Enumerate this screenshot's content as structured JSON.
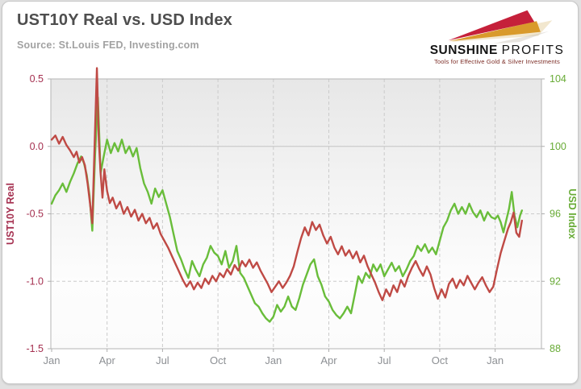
{
  "header": {
    "title": "UST10Y Real vs. USD Index",
    "source": "Source: St.Louis FED, Investing.com"
  },
  "logo": {
    "brand_primary": "SUNSHINE",
    "brand_secondary": "PROFITS",
    "tagline": "Tools for Effective Gold & Silver Investments"
  },
  "chart_data": {
    "type": "line",
    "title": "UST10Y Real vs. USD Index",
    "x_axis": {
      "unit": "months since Jan 2020",
      "range": [
        0,
        26.5
      ],
      "tick_positions": [
        0,
        3,
        6,
        9,
        12,
        15,
        18,
        21,
        24
      ],
      "tick_labels": [
        "Jan",
        "Apr",
        "Jul",
        "Oct",
        "Jan",
        "Apr",
        "Jul",
        "Oct",
        "Jan"
      ],
      "tick_color": "#8d9094"
    },
    "y_left": {
      "label": "UST10Y Real",
      "range": [
        -1.5,
        0.5
      ],
      "ticks": [
        0.5,
        0.0,
        -0.5,
        -1.0,
        -1.5
      ],
      "tick_labels": [
        "0.5",
        "0.0",
        "-0.5",
        "-1.0",
        "-1.5"
      ],
      "color": "#a53050"
    },
    "y_right": {
      "label": "USD Index",
      "range": [
        88,
        104
      ],
      "ticks": [
        104,
        100,
        96,
        92,
        88
      ],
      "tick_labels": [
        "104",
        "100",
        "96",
        "92",
        "88"
      ],
      "color": "#68ab36"
    },
    "grid": {
      "h_solid": [
        0.0
      ],
      "h_dashed": [
        -0.5,
        -1.0
      ],
      "v_dashed_positions": [
        3,
        6,
        9,
        12,
        15,
        18,
        21,
        24
      ],
      "border_color": "#b5b5b5",
      "solid_color": "#c3c3c3",
      "dashed_color": "#cbcbcb"
    },
    "legend": "none",
    "series": [
      {
        "name": "USD Index",
        "axis": "right",
        "color": "#69bd3a",
        "points": [
          [
            0.0,
            96.6
          ],
          [
            0.2,
            97.1
          ],
          [
            0.4,
            97.4
          ],
          [
            0.6,
            97.8
          ],
          [
            0.8,
            97.3
          ],
          [
            1.0,
            97.9
          ],
          [
            1.2,
            98.4
          ],
          [
            1.4,
            99.0
          ],
          [
            1.6,
            99.4
          ],
          [
            1.75,
            99.0
          ],
          [
            1.9,
            98.3
          ],
          [
            2.05,
            97.1
          ],
          [
            2.2,
            95.0
          ],
          [
            2.35,
            99.5
          ],
          [
            2.5,
            102.9
          ],
          [
            2.65,
            98.4
          ],
          [
            2.8,
            99.3
          ],
          [
            3.0,
            100.4
          ],
          [
            3.2,
            99.6
          ],
          [
            3.4,
            100.2
          ],
          [
            3.6,
            99.7
          ],
          [
            3.8,
            100.4
          ],
          [
            4.0,
            99.6
          ],
          [
            4.2,
            100.0
          ],
          [
            4.4,
            99.4
          ],
          [
            4.6,
            99.9
          ],
          [
            4.8,
            98.7
          ],
          [
            5.0,
            97.8
          ],
          [
            5.2,
            97.3
          ],
          [
            5.4,
            96.6
          ],
          [
            5.6,
            97.5
          ],
          [
            5.8,
            97.0
          ],
          [
            6.0,
            97.4
          ],
          [
            6.2,
            96.6
          ],
          [
            6.4,
            95.8
          ],
          [
            6.6,
            94.8
          ],
          [
            6.8,
            93.8
          ],
          [
            7.0,
            93.3
          ],
          [
            7.2,
            92.7
          ],
          [
            7.4,
            92.2
          ],
          [
            7.6,
            93.2
          ],
          [
            7.8,
            92.7
          ],
          [
            8.0,
            92.3
          ],
          [
            8.2,
            93.0
          ],
          [
            8.4,
            93.4
          ],
          [
            8.6,
            94.1
          ],
          [
            8.8,
            93.7
          ],
          [
            9.0,
            93.5
          ],
          [
            9.2,
            93.0
          ],
          [
            9.4,
            93.8
          ],
          [
            9.6,
            92.8
          ],
          [
            9.8,
            93.2
          ],
          [
            10.0,
            94.1
          ],
          [
            10.2,
            92.5
          ],
          [
            10.4,
            92.2
          ],
          [
            10.6,
            91.7
          ],
          [
            10.8,
            91.2
          ],
          [
            11.0,
            90.7
          ],
          [
            11.2,
            90.5
          ],
          [
            11.4,
            90.1
          ],
          [
            11.6,
            89.8
          ],
          [
            11.8,
            89.6
          ],
          [
            12.0,
            89.9
          ],
          [
            12.2,
            90.6
          ],
          [
            12.4,
            90.2
          ],
          [
            12.6,
            90.5
          ],
          [
            12.8,
            91.1
          ],
          [
            13.0,
            90.5
          ],
          [
            13.2,
            90.3
          ],
          [
            13.4,
            91.0
          ],
          [
            13.6,
            91.8
          ],
          [
            13.8,
            92.4
          ],
          [
            14.0,
            93.0
          ],
          [
            14.2,
            93.3
          ],
          [
            14.4,
            92.3
          ],
          [
            14.6,
            91.8
          ],
          [
            14.8,
            91.1
          ],
          [
            15.0,
            90.8
          ],
          [
            15.2,
            90.3
          ],
          [
            15.4,
            90.0
          ],
          [
            15.6,
            89.8
          ],
          [
            15.8,
            90.1
          ],
          [
            16.0,
            90.5
          ],
          [
            16.2,
            90.1
          ],
          [
            16.4,
            91.2
          ],
          [
            16.6,
            92.3
          ],
          [
            16.8,
            91.9
          ],
          [
            17.0,
            92.5
          ],
          [
            17.2,
            92.2
          ],
          [
            17.4,
            93.0
          ],
          [
            17.6,
            92.6
          ],
          [
            17.8,
            93.0
          ],
          [
            18.0,
            92.3
          ],
          [
            18.2,
            92.7
          ],
          [
            18.4,
            93.1
          ],
          [
            18.6,
            92.6
          ],
          [
            18.8,
            92.9
          ],
          [
            19.0,
            92.3
          ],
          [
            19.2,
            92.7
          ],
          [
            19.4,
            93.2
          ],
          [
            19.6,
            93.5
          ],
          [
            19.8,
            94.1
          ],
          [
            20.0,
            93.8
          ],
          [
            20.2,
            94.2
          ],
          [
            20.4,
            93.7
          ],
          [
            20.6,
            94.0
          ],
          [
            20.8,
            93.6
          ],
          [
            21.0,
            94.4
          ],
          [
            21.2,
            95.2
          ],
          [
            21.4,
            95.6
          ],
          [
            21.6,
            96.2
          ],
          [
            21.8,
            96.6
          ],
          [
            22.0,
            96.0
          ],
          [
            22.2,
            96.4
          ],
          [
            22.4,
            96.0
          ],
          [
            22.6,
            96.6
          ],
          [
            22.8,
            96.1
          ],
          [
            23.0,
            95.8
          ],
          [
            23.2,
            96.2
          ],
          [
            23.4,
            95.6
          ],
          [
            23.6,
            96.1
          ],
          [
            23.8,
            95.8
          ],
          [
            24.0,
            95.7
          ],
          [
            24.15,
            95.9
          ],
          [
            24.3,
            95.5
          ],
          [
            24.45,
            94.9
          ],
          [
            24.6,
            95.6
          ],
          [
            24.75,
            96.3
          ],
          [
            24.9,
            97.3
          ],
          [
            25.05,
            95.9
          ],
          [
            25.2,
            95.2
          ],
          [
            25.35,
            95.9
          ],
          [
            25.45,
            96.2
          ]
        ]
      },
      {
        "name": "UST10Y Real",
        "axis": "left",
        "color": "#bf4a45",
        "points": [
          [
            0.0,
            0.05
          ],
          [
            0.2,
            0.08
          ],
          [
            0.4,
            0.02
          ],
          [
            0.6,
            0.07
          ],
          [
            0.8,
            0.01
          ],
          [
            1.0,
            -0.03
          ],
          [
            1.2,
            -0.08
          ],
          [
            1.35,
            -0.04
          ],
          [
            1.5,
            -0.12
          ],
          [
            1.65,
            -0.08
          ],
          [
            1.8,
            -0.14
          ],
          [
            1.95,
            -0.28
          ],
          [
            2.1,
            -0.45
          ],
          [
            2.2,
            -0.57
          ],
          [
            2.3,
            -0.1
          ],
          [
            2.45,
            0.58
          ],
          [
            2.55,
            0.05
          ],
          [
            2.65,
            -0.2
          ],
          [
            2.75,
            -0.38
          ],
          [
            2.85,
            -0.17
          ],
          [
            3.0,
            -0.33
          ],
          [
            3.15,
            -0.42
          ],
          [
            3.3,
            -0.38
          ],
          [
            3.5,
            -0.46
          ],
          [
            3.7,
            -0.41
          ],
          [
            3.9,
            -0.5
          ],
          [
            4.1,
            -0.45
          ],
          [
            4.3,
            -0.52
          ],
          [
            4.5,
            -0.47
          ],
          [
            4.7,
            -0.55
          ],
          [
            4.9,
            -0.5
          ],
          [
            5.1,
            -0.57
          ],
          [
            5.3,
            -0.53
          ],
          [
            5.5,
            -0.61
          ],
          [
            5.7,
            -0.57
          ],
          [
            5.9,
            -0.65
          ],
          [
            6.1,
            -0.7
          ],
          [
            6.3,
            -0.75
          ],
          [
            6.5,
            -0.81
          ],
          [
            6.7,
            -0.87
          ],
          [
            6.9,
            -0.93
          ],
          [
            7.1,
            -0.99
          ],
          [
            7.3,
            -1.04
          ],
          [
            7.5,
            -1.0
          ],
          [
            7.7,
            -1.06
          ],
          [
            7.9,
            -1.01
          ],
          [
            8.1,
            -1.05
          ],
          [
            8.3,
            -0.98
          ],
          [
            8.5,
            -1.02
          ],
          [
            8.7,
            -0.96
          ],
          [
            8.9,
            -1.0
          ],
          [
            9.1,
            -0.94
          ],
          [
            9.3,
            -0.97
          ],
          [
            9.5,
            -0.91
          ],
          [
            9.7,
            -0.95
          ],
          [
            9.9,
            -0.88
          ],
          [
            10.1,
            -0.92
          ],
          [
            10.3,
            -0.85
          ],
          [
            10.5,
            -0.89
          ],
          [
            10.7,
            -0.84
          ],
          [
            10.9,
            -0.9
          ],
          [
            11.1,
            -0.86
          ],
          [
            11.3,
            -0.92
          ],
          [
            11.5,
            -0.97
          ],
          [
            11.7,
            -1.02
          ],
          [
            11.9,
            -1.08
          ],
          [
            12.1,
            -1.04
          ],
          [
            12.3,
            -1.0
          ],
          [
            12.5,
            -1.05
          ],
          [
            12.7,
            -1.01
          ],
          [
            12.9,
            -0.96
          ],
          [
            13.1,
            -0.89
          ],
          [
            13.3,
            -0.78
          ],
          [
            13.5,
            -0.68
          ],
          [
            13.7,
            -0.6
          ],
          [
            13.9,
            -0.66
          ],
          [
            14.1,
            -0.56
          ],
          [
            14.3,
            -0.62
          ],
          [
            14.5,
            -0.58
          ],
          [
            14.7,
            -0.66
          ],
          [
            14.9,
            -0.72
          ],
          [
            15.1,
            -0.67
          ],
          [
            15.3,
            -0.75
          ],
          [
            15.5,
            -0.8
          ],
          [
            15.7,
            -0.74
          ],
          [
            15.9,
            -0.81
          ],
          [
            16.1,
            -0.77
          ],
          [
            16.3,
            -0.83
          ],
          [
            16.5,
            -0.78
          ],
          [
            16.7,
            -0.86
          ],
          [
            16.9,
            -0.81
          ],
          [
            17.1,
            -0.89
          ],
          [
            17.3,
            -0.95
          ],
          [
            17.5,
            -1.01
          ],
          [
            17.7,
            -1.08
          ],
          [
            17.9,
            -1.14
          ],
          [
            18.1,
            -1.06
          ],
          [
            18.3,
            -1.11
          ],
          [
            18.5,
            -1.03
          ],
          [
            18.7,
            -1.08
          ],
          [
            18.9,
            -0.99
          ],
          [
            19.1,
            -1.04
          ],
          [
            19.3,
            -0.96
          ],
          [
            19.5,
            -0.9
          ],
          [
            19.7,
            -0.85
          ],
          [
            19.9,
            -0.91
          ],
          [
            20.1,
            -0.96
          ],
          [
            20.3,
            -0.89
          ],
          [
            20.5,
            -0.95
          ],
          [
            20.7,
            -1.05
          ],
          [
            20.9,
            -1.13
          ],
          [
            21.1,
            -1.06
          ],
          [
            21.3,
            -1.12
          ],
          [
            21.5,
            -1.02
          ],
          [
            21.7,
            -0.98
          ],
          [
            21.9,
            -1.05
          ],
          [
            22.1,
            -0.99
          ],
          [
            22.3,
            -1.03
          ],
          [
            22.5,
            -0.96
          ],
          [
            22.7,
            -1.01
          ],
          [
            22.9,
            -1.06
          ],
          [
            23.1,
            -1.01
          ],
          [
            23.3,
            -0.97
          ],
          [
            23.5,
            -1.03
          ],
          [
            23.7,
            -1.08
          ],
          [
            23.9,
            -1.04
          ],
          [
            24.1,
            -0.91
          ],
          [
            24.3,
            -0.79
          ],
          [
            24.5,
            -0.7
          ],
          [
            24.7,
            -0.61
          ],
          [
            24.85,
            -0.56
          ],
          [
            25.0,
            -0.49
          ],
          [
            25.15,
            -0.64
          ],
          [
            25.3,
            -0.67
          ],
          [
            25.45,
            -0.55
          ]
        ]
      }
    ]
  }
}
